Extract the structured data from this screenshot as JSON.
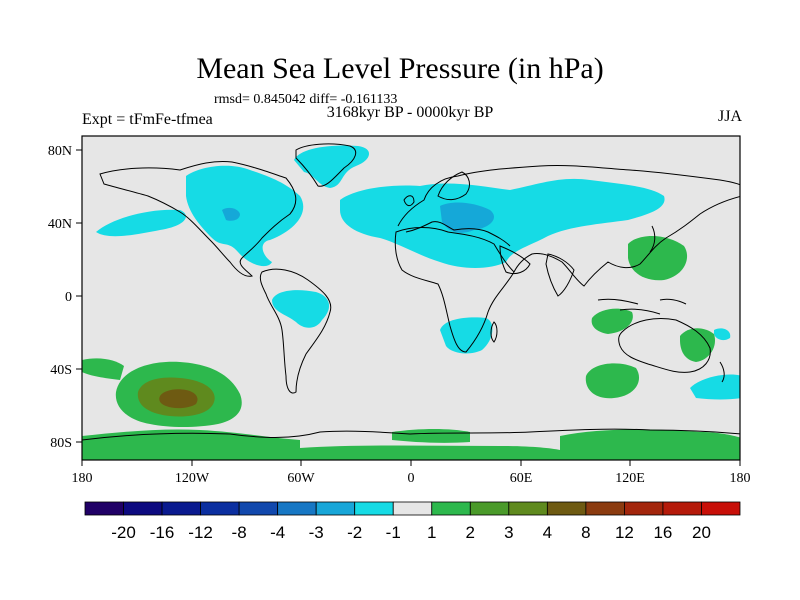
{
  "title": "Mean Sea Level Pressure (in hPa)",
  "stats_line": "rmsd= 0.845042 diff= -0.161133",
  "experiment_label": "Expt = tFmFe-tfmea",
  "period_label": "3168kyr BP - 0000kyr BP",
  "season_label": "JJA",
  "colors": {
    "background_land_sea": "#e6e6e6",
    "cyan": "#16dbe5",
    "light_blue": "#15a8d8",
    "green": "#2db84d",
    "olive": "#5f8a1e",
    "brown": "#6e5a12",
    "coastline": "#000000"
  },
  "map": {
    "lon_ticks": [
      "180",
      "120W",
      "60W",
      "0",
      "60E",
      "120E",
      "180"
    ],
    "lat_ticks": [
      "80N",
      "40N",
      "0",
      "40S",
      "80S"
    ]
  },
  "colorbar": {
    "labels": [
      "-20",
      "-16",
      "-12",
      "-8",
      "-4",
      "-3",
      "-2",
      "-1",
      "1",
      "2",
      "3",
      "4",
      "8",
      "12",
      "16",
      "20"
    ],
    "colors": [
      "#200066",
      "#0d0a80",
      "#0a1a8f",
      "#0b2fa0",
      "#1148ad",
      "#1777c4",
      "#18a6d8",
      "#16dbe5",
      "#e6e6e6",
      "#2db84d",
      "#4a9a2a",
      "#5f8a1e",
      "#6e5a12",
      "#8b3b10",
      "#a3260c",
      "#b51a0a",
      "#c80f08"
    ]
  }
}
